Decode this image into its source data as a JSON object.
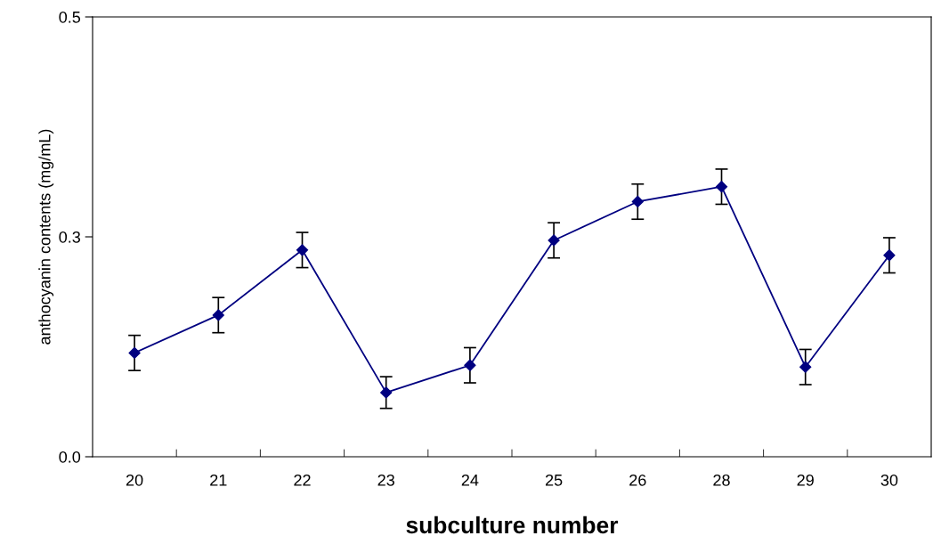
{
  "chart_data": {
    "type": "line",
    "xlabel": "subculture number",
    "ylabel": "anthocyanin contents (mg/mL)",
    "categories": [
      "20",
      "21",
      "22",
      "23",
      "24",
      "25",
      "26",
      "28",
      "29",
      "30"
    ],
    "series": [
      {
        "color": "#000080",
        "values": [
          0.118,
          0.161,
          0.235,
          0.073,
          0.104,
          0.246,
          0.29,
          0.307,
          0.102,
          0.229
        ],
        "errors": [
          0.02,
          0.02,
          0.02,
          0.018,
          0.02,
          0.02,
          0.02,
          0.02,
          0.02,
          0.02
        ]
      }
    ],
    "ylim": [
      0,
      0.5
    ],
    "yticks": [
      {
        "value": 0,
        "label": "0.0"
      },
      {
        "value": 0.25,
        "label": "0.3"
      },
      {
        "value": 0.5,
        "label": "0.5"
      }
    ],
    "marker": "diamond",
    "line_style": "solid",
    "grid": false,
    "legend": false
  }
}
